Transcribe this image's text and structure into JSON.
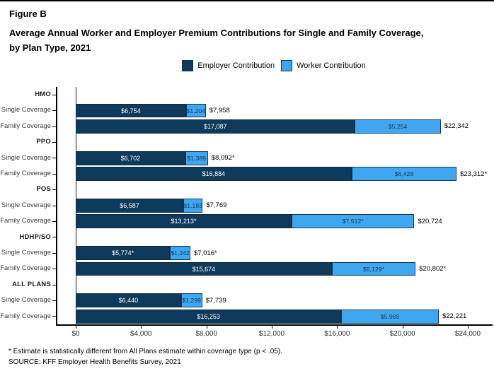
{
  "title": {
    "figure_label": "Figure B",
    "line1": "Average Annual Worker and Employer Premium Contributions for Single and Family Coverage,",
    "line2": "by Plan Type, 2021"
  },
  "legend": {
    "items": [
      {
        "label": "Employer Contribution",
        "color": "#0E3A5C"
      },
      {
        "label": "Worker Contribution",
        "color": "#41A6F0"
      }
    ]
  },
  "footnotes": {
    "note": "* Estimate is statistically different from All Plans estimate within coverage type (p < .05).",
    "source": "SOURCE: KFF Employer Health Benefits Survey, 2021"
  },
  "chart_data": {
    "type": "bar",
    "orientation": "horizontal-stacked",
    "series": [
      "Employer Contribution",
      "Worker Contribution"
    ],
    "colors": {
      "employer": "#0E3A5C",
      "worker": "#41A6F0",
      "worker_text": "#0E3A5C"
    },
    "xlim": [
      0,
      24000
    ],
    "x_ticks": [
      "$0",
      "$4,000",
      "$8,000",
      "$12,000",
      "$16,000",
      "$20,000",
      "$24,000"
    ],
    "x_tick_values": [
      0,
      4000,
      8000,
      12000,
      16000,
      20000,
      24000
    ],
    "groups": [
      {
        "plan": "HMO",
        "rows": [
          {
            "label": "Single Coverage",
            "employer": 6754,
            "employer_label": "$6,754",
            "worker": 1204,
            "worker_label": "$1,204",
            "total_label": "$7,958"
          },
          {
            "label": "Family Coverage",
            "employer": 17087,
            "employer_label": "$17,087",
            "worker": 5254,
            "worker_label": "$5,254",
            "total_label": "$22,342"
          }
        ]
      },
      {
        "plan": "PPO",
        "rows": [
          {
            "label": "Single Coverage",
            "employer": 6702,
            "employer_label": "$6,702",
            "worker": 1389,
            "worker_label": "$1,389",
            "total_label": "$8,092*"
          },
          {
            "label": "Family Coverage",
            "employer": 16884,
            "employer_label": "$16,884",
            "worker": 6428,
            "worker_label": "$6,428",
            "total_label": "$23,312*"
          }
        ]
      },
      {
        "plan": "POS",
        "rows": [
          {
            "label": "Single Coverage",
            "employer": 6587,
            "employer_label": "$6,587",
            "worker": 1183,
            "worker_label": "$1,183",
            "total_label": "$7,769"
          },
          {
            "label": "Family Coverage",
            "employer": 13213,
            "employer_label": "$13,213*",
            "worker": 7512,
            "worker_label": "$7,512*",
            "total_label": "$20,724"
          }
        ]
      },
      {
        "plan": "HDHP/SO",
        "rows": [
          {
            "label": "Single Coverage",
            "employer": 5774,
            "employer_label": "$5,774*",
            "worker": 1242,
            "worker_label": "$1,242",
            "total_label": "$7,016*"
          },
          {
            "label": "Family Coverage",
            "employer": 15674,
            "employer_label": "$15,674",
            "worker": 5129,
            "worker_label": "$5,129*",
            "total_label": "$20,802*"
          }
        ]
      },
      {
        "plan": "ALL PLANS",
        "rows": [
          {
            "label": "Single Coverage",
            "employer": 6440,
            "employer_label": "$6,440",
            "worker": 1299,
            "worker_label": "$1,299",
            "total_label": "$7,739"
          },
          {
            "label": "Family Coverage",
            "employer": 16253,
            "employer_label": "$16,253",
            "worker": 5969,
            "worker_label": "$5,969",
            "total_label": "$22,221"
          }
        ]
      }
    ]
  }
}
